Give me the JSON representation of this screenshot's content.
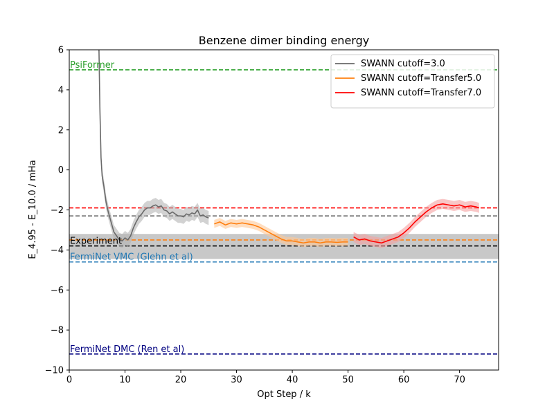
{
  "chart_data": {
    "type": "line",
    "title": "Benzene dimer binding energy",
    "xlabel": "Opt Step / k",
    "ylabel": "E_4.95 - E_10.0 / mHa",
    "xlim": [
      0,
      77
    ],
    "ylim": [
      -10,
      6
    ],
    "xticks": [
      0,
      10,
      20,
      30,
      40,
      50,
      60,
      70
    ],
    "yticks": [
      -10,
      -8,
      -6,
      -4,
      -2,
      0,
      2,
      4,
      6
    ],
    "legend_position": "top-right",
    "grid": false,
    "band": {
      "y_low": -4.45,
      "y_high": -3.2,
      "color": "#c8c8c8"
    },
    "references": [
      {
        "label": "PsiFormer",
        "y": 5.0,
        "color": "#2ca02c",
        "label_color": "#2ca02c"
      },
      {
        "label": "",
        "y": -1.9,
        "color": "#ff0000",
        "label_color": ""
      },
      {
        "label": "",
        "y": -2.3,
        "color": "#696969",
        "label_color": ""
      },
      {
        "label": "",
        "y": -3.5,
        "color": "#ff7f0e",
        "label_color": ""
      },
      {
        "label": "Experiment",
        "y": -3.8,
        "color": "#000000",
        "label_color": "#000000"
      },
      {
        "label": "FermiNet VMC (Glehn et al)",
        "y": -4.6,
        "color": "#1f77b4",
        "label_color": "#1f77b4"
      },
      {
        "label": "FermiNet DMC (Ren et al)",
        "y": -9.2,
        "color": "#000080",
        "label_color": "#000080"
      }
    ],
    "series": [
      {
        "name": "SWANN cutoff=3.0",
        "color": "#696969",
        "band_color": "#b4b4b4",
        "band_width": 0.35,
        "points": [
          [
            5.3,
            6.5
          ],
          [
            5.5,
            3.0
          ],
          [
            5.7,
            0.6
          ],
          [
            5.9,
            -0.3
          ],
          [
            6.2,
            -0.8
          ],
          [
            6.6,
            -1.6
          ],
          [
            7.0,
            -2.1
          ],
          [
            7.5,
            -2.6
          ],
          [
            8.0,
            -3.1
          ],
          [
            8.5,
            -3.3
          ],
          [
            9.0,
            -3.5
          ],
          [
            9.5,
            -3.55
          ],
          [
            10.0,
            -3.4
          ],
          [
            10.5,
            -3.5
          ],
          [
            11.0,
            -3.3
          ],
          [
            11.5,
            -2.9
          ],
          [
            12.0,
            -2.6
          ],
          [
            12.5,
            -2.35
          ],
          [
            13.0,
            -2.2
          ],
          [
            13.5,
            -2.0
          ],
          [
            14.0,
            -1.9
          ],
          [
            14.5,
            -1.9
          ],
          [
            15.0,
            -1.8
          ],
          [
            15.5,
            -1.75
          ],
          [
            16.0,
            -1.85
          ],
          [
            16.5,
            -1.8
          ],
          [
            17.0,
            -2.0
          ],
          [
            17.5,
            -2.05
          ],
          [
            18.0,
            -2.2
          ],
          [
            18.5,
            -2.1
          ],
          [
            19.0,
            -2.2
          ],
          [
            19.5,
            -2.3
          ],
          [
            20.0,
            -2.3
          ],
          [
            20.5,
            -2.35
          ],
          [
            21.0,
            -2.2
          ],
          [
            21.5,
            -2.25
          ],
          [
            22.0,
            -2.15
          ],
          [
            22.5,
            -2.2
          ],
          [
            23.0,
            -2.0
          ],
          [
            23.5,
            -2.3
          ],
          [
            24.0,
            -2.25
          ],
          [
            24.5,
            -2.35
          ],
          [
            25.0,
            -2.4
          ]
        ]
      },
      {
        "name": "SWANN cutoff=Transfer5.0",
        "color": "#ff7f0e",
        "band_color": "#ffc896",
        "band_width": 0.2,
        "points": [
          [
            26.0,
            -2.7
          ],
          [
            27.0,
            -2.6
          ],
          [
            28.0,
            -2.75
          ],
          [
            29.0,
            -2.65
          ],
          [
            30.0,
            -2.7
          ],
          [
            31.0,
            -2.65
          ],
          [
            32.0,
            -2.7
          ],
          [
            33.0,
            -2.75
          ],
          [
            34.0,
            -2.85
          ],
          [
            35.0,
            -3.0
          ],
          [
            36.0,
            -3.15
          ],
          [
            37.0,
            -3.3
          ],
          [
            38.0,
            -3.45
          ],
          [
            39.0,
            -3.55
          ],
          [
            40.0,
            -3.55
          ],
          [
            41.0,
            -3.6
          ],
          [
            42.0,
            -3.65
          ],
          [
            43.0,
            -3.6
          ],
          [
            44.0,
            -3.6
          ],
          [
            45.0,
            -3.65
          ],
          [
            46.0,
            -3.6
          ],
          [
            47.0,
            -3.6
          ],
          [
            48.0,
            -3.62
          ],
          [
            49.0,
            -3.6
          ],
          [
            50.0,
            -3.6
          ]
        ]
      },
      {
        "name": "SWANN cutoff=Transfer7.0",
        "color": "#ff0000",
        "band_color": "#f5a0a0",
        "band_width": 0.25,
        "points": [
          [
            51.0,
            -3.35
          ],
          [
            52.0,
            -3.5
          ],
          [
            53.0,
            -3.45
          ],
          [
            54.0,
            -3.55
          ],
          [
            55.0,
            -3.6
          ],
          [
            56.0,
            -3.65
          ],
          [
            57.0,
            -3.55
          ],
          [
            58.0,
            -3.45
          ],
          [
            59.0,
            -3.35
          ],
          [
            60.0,
            -3.15
          ],
          [
            61.0,
            -2.9
          ],
          [
            62.0,
            -2.6
          ],
          [
            63.0,
            -2.35
          ],
          [
            64.0,
            -2.1
          ],
          [
            65.0,
            -1.9
          ],
          [
            66.0,
            -1.75
          ],
          [
            67.0,
            -1.7
          ],
          [
            68.0,
            -1.75
          ],
          [
            69.0,
            -1.8
          ],
          [
            70.0,
            -1.75
          ],
          [
            71.0,
            -1.85
          ],
          [
            72.0,
            -1.8
          ],
          [
            73.0,
            -1.85
          ],
          [
            73.5,
            -1.9
          ]
        ]
      }
    ]
  }
}
